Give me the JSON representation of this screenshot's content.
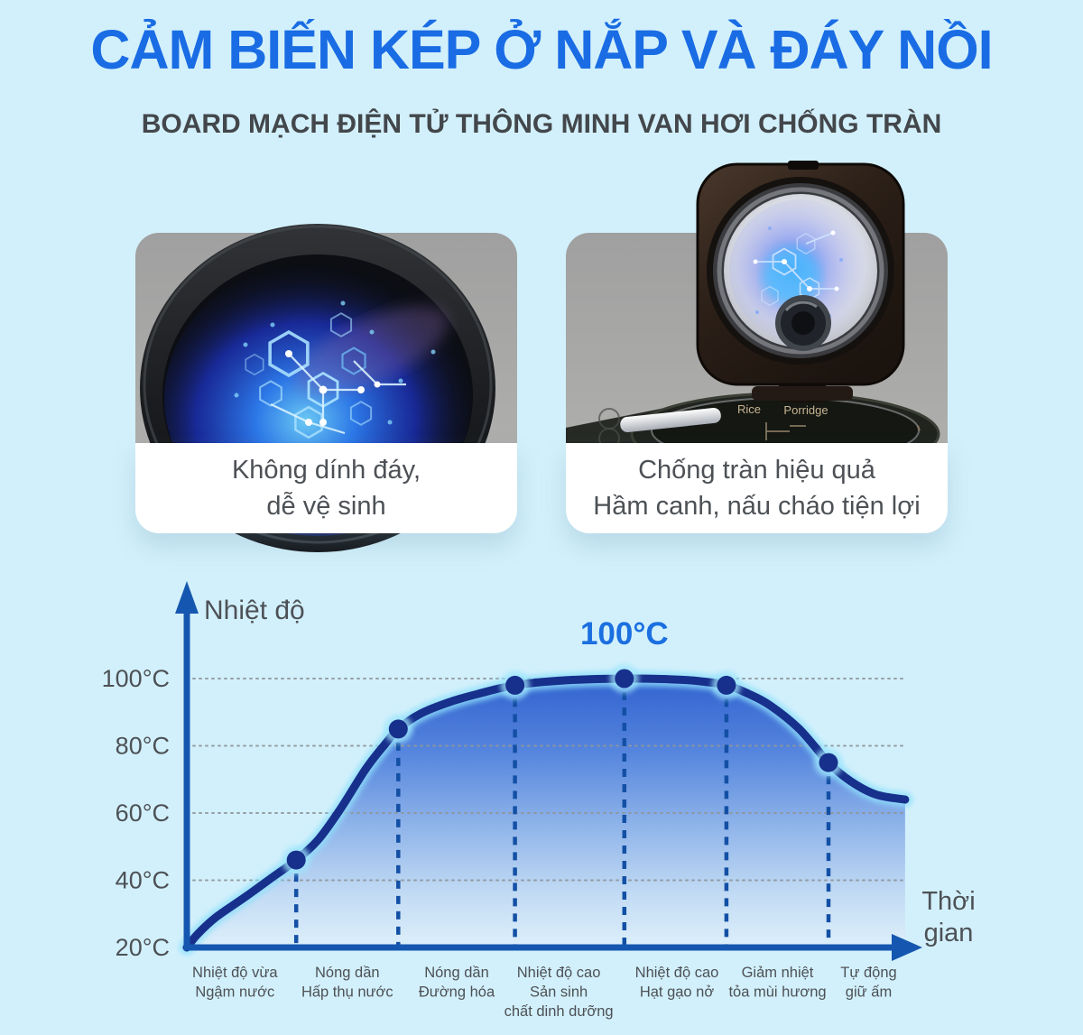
{
  "header": {
    "title": "CẢM BIẾN KÉP Ở NẮP VÀ ĐÁY NỒI",
    "subtitle": "BOARD MẠCH ĐIỆN TỬ THÔNG MINH VAN HƠI CHỐNG TRÀN",
    "title_color": "#1a6ce4",
    "subtitle_color": "#43474b"
  },
  "cards": [
    {
      "id": "nonstick-pot",
      "caption_lines": [
        "Không dính đáy,",
        "dễ vệ sinh"
      ]
    },
    {
      "id": "anti-overflow-lid",
      "caption_lines": [
        "Chống tràn hiệu quả",
        "Hầm canh, nấu cháo tiện lợi"
      ],
      "image_text": {
        "rice": "Rice",
        "porridge": "Porridge"
      }
    }
  ],
  "chart_data": {
    "type": "area",
    "ylabel": "Nhiệt độ",
    "xlabel_lines": [
      "Thời",
      "gian"
    ],
    "annotation": {
      "text": "100°C",
      "t": 60,
      "temp": 100
    },
    "xlim": [
      0,
      100
    ],
    "ylim": [
      20,
      100
    ],
    "grid": "dotted horizontal gridlines at 40,60,80,100; dashed vertical guide at each marker",
    "legend_position": "none",
    "y_ticks": [
      {
        "label": "100°C",
        "value": 100
      },
      {
        "label": "80°C",
        "value": 80
      },
      {
        "label": "60°C",
        "value": 60
      },
      {
        "label": "40°C",
        "value": 40
      },
      {
        "label": "20°C",
        "value": 20
      }
    ],
    "curve": [
      [
        0,
        20
      ],
      [
        1.5,
        24
      ],
      [
        4,
        29
      ],
      [
        8,
        35
      ],
      [
        11.5,
        40.5
      ],
      [
        15,
        46
      ],
      [
        18,
        52
      ],
      [
        21,
        61
      ],
      [
        24.5,
        73
      ],
      [
        27,
        80
      ],
      [
        29,
        85
      ],
      [
        32,
        89.5
      ],
      [
        36,
        93
      ],
      [
        40,
        95.5
      ],
      [
        45,
        98
      ],
      [
        52,
        99.5
      ],
      [
        60,
        100
      ],
      [
        66,
        99.8
      ],
      [
        70,
        99.3
      ],
      [
        74,
        98
      ],
      [
        77,
        95.5
      ],
      [
        80,
        92
      ],
      [
        84,
        85
      ],
      [
        88,
        75
      ],
      [
        91,
        69.5
      ],
      [
        94.5,
        65.5
      ],
      [
        98.5,
        64
      ]
    ],
    "markers": [
      {
        "t": 15,
        "temp": 46
      },
      {
        "t": 29,
        "temp": 85
      },
      {
        "t": 45,
        "temp": 98
      },
      {
        "t": 60,
        "temp": 100
      },
      {
        "t": 74,
        "temp": 98
      },
      {
        "t": 88,
        "temp": 75
      }
    ],
    "phases": [
      {
        "t": 6.6,
        "lines": [
          "Nhiệt độ vừa",
          "Ngậm nước"
        ]
      },
      {
        "t": 22,
        "lines": [
          "Nóng dần",
          "Hấp thụ nước"
        ]
      },
      {
        "t": 37,
        "lines": [
          "Nóng dần",
          "Đường hóa"
        ]
      },
      {
        "t": 51,
        "lines": [
          "Nhiệt độ cao",
          "Sản sinh",
          "chất dinh dưỡng"
        ]
      },
      {
        "t": 67.2,
        "lines": [
          "Nhiệt độ cao",
          "Hạt gạo nở"
        ]
      },
      {
        "t": 81,
        "lines": [
          "Giảm nhiệt",
          "tỏa mùi hương"
        ]
      },
      {
        "t": 93.5,
        "lines": [
          "Tự động",
          "giữ ấm"
        ]
      }
    ],
    "colors": {
      "curve": "#17308c",
      "glow": "#8fe0fc",
      "marker_glow": "#9fe6fd",
      "fill_top": "#3061cf",
      "fill_bottom": "#def0fb",
      "axis": "#1557b0",
      "dash": "#1350a5",
      "grid": "#8f979b",
      "text": "#4d5156",
      "annotation": "#1b6fe0"
    }
  }
}
